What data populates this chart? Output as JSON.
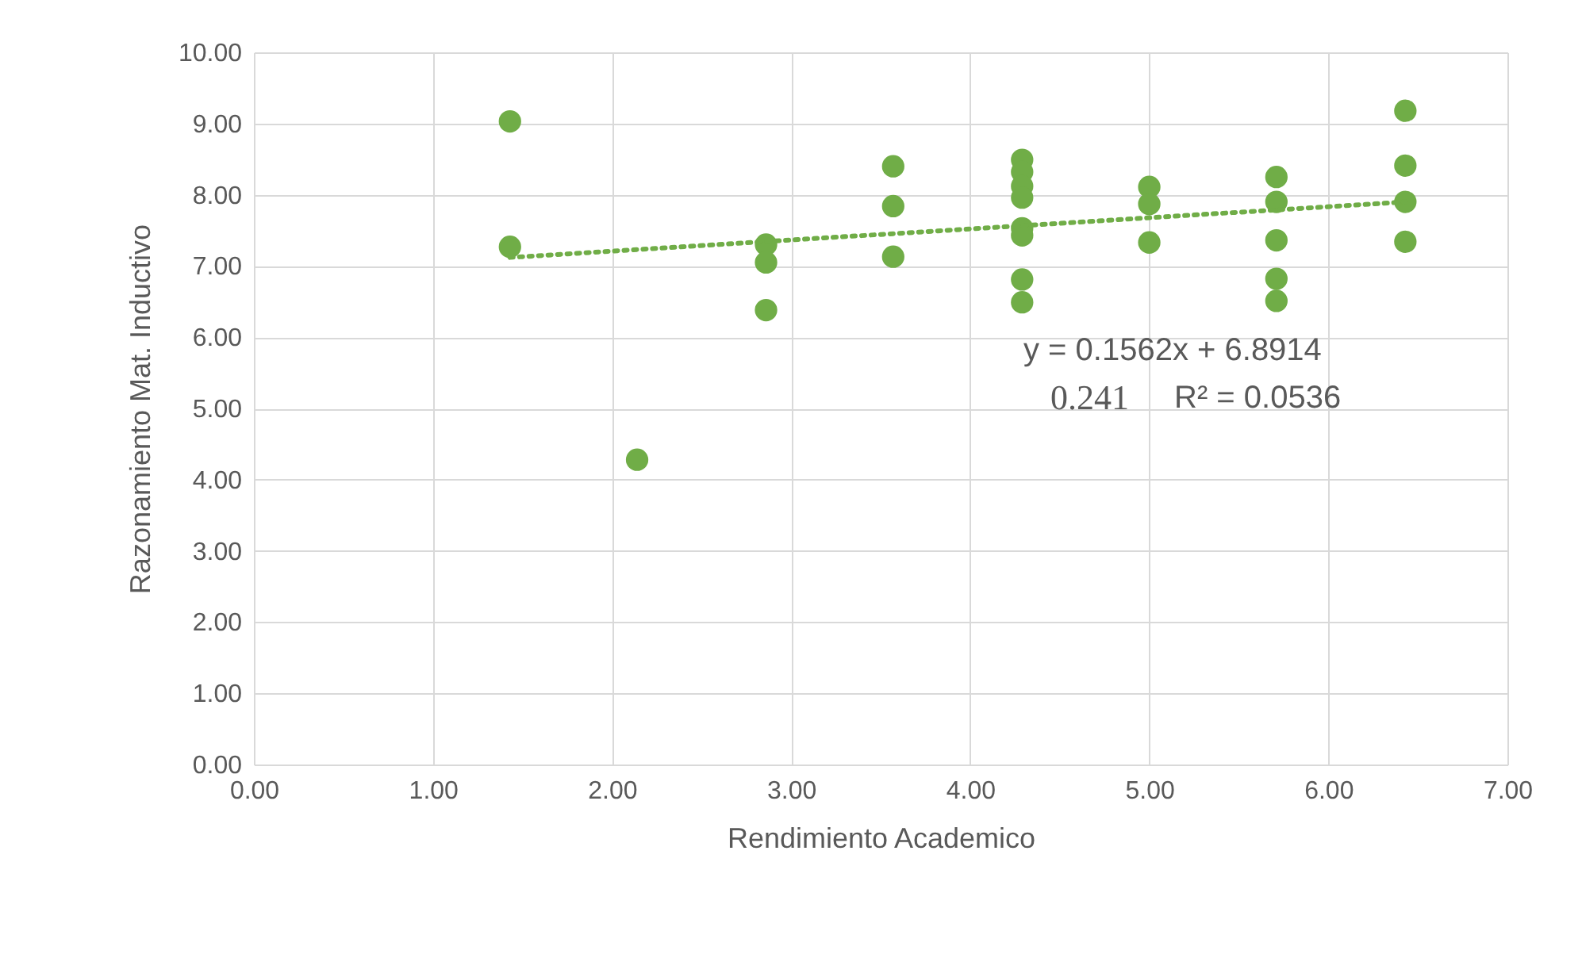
{
  "chart_data": {
    "type": "scatter",
    "xlabel": "Rendimiento Academico",
    "ylabel": "Razonamiento Mat. Inductivo",
    "xlim": [
      0,
      7
    ],
    "ylim": [
      0,
      10
    ],
    "xticks": [
      {
        "value": 0,
        "label": "0.00"
      },
      {
        "value": 1,
        "label": "1.00"
      },
      {
        "value": 2,
        "label": "2.00"
      },
      {
        "value": 3,
        "label": "3.00"
      },
      {
        "value": 4,
        "label": "4.00"
      },
      {
        "value": 5,
        "label": "5.00"
      },
      {
        "value": 6,
        "label": "6.00"
      },
      {
        "value": 7,
        "label": "7.00"
      }
    ],
    "yticks": [
      {
        "value": 0,
        "label": "0.00"
      },
      {
        "value": 1,
        "label": "1.00"
      },
      {
        "value": 2,
        "label": "2.00"
      },
      {
        "value": 3,
        "label": "3.00"
      },
      {
        "value": 4,
        "label": "4.00"
      },
      {
        "value": 5,
        "label": "5.00"
      },
      {
        "value": 6,
        "label": "6.00"
      },
      {
        "value": 7,
        "label": "7.00"
      },
      {
        "value": 8,
        "label": "8.00"
      },
      {
        "value": 9,
        "label": "9.00"
      },
      {
        "value": 10,
        "label": "10.00"
      }
    ],
    "grid": true,
    "series": [
      {
        "marker": "circle",
        "color": "#70ad47",
        "x": [
          1.43,
          1.43,
          2.14,
          2.86,
          2.86,
          2.86,
          3.57,
          3.57,
          3.57,
          4.29,
          4.29,
          4.29,
          4.29,
          4.29,
          4.29,
          4.29,
          4.29,
          5.0,
          5.0,
          5.0,
          5.71,
          5.71,
          5.71,
          5.71,
          5.71,
          6.43,
          6.43,
          6.43,
          6.43
        ],
        "values": [
          9.03,
          7.27,
          4.28,
          7.3,
          7.05,
          6.38,
          8.4,
          7.84,
          7.13,
          8.49,
          8.32,
          8.12,
          7.96,
          7.53,
          7.43,
          6.81,
          6.49,
          8.11,
          7.87,
          7.33,
          8.25,
          7.9,
          7.36,
          6.82,
          6.51,
          9.18,
          8.41,
          7.9,
          7.34
        ]
      },
      {
        "type": "line",
        "color": "#70ad47",
        "line_style": "dotted",
        "x": [
          1.43,
          6.43
        ],
        "values": [
          7.12,
          7.9
        ]
      }
    ],
    "annotations": [
      "y = 0.1562x + 6.8914",
      "0.241",
      "R² = 0.0536"
    ]
  }
}
